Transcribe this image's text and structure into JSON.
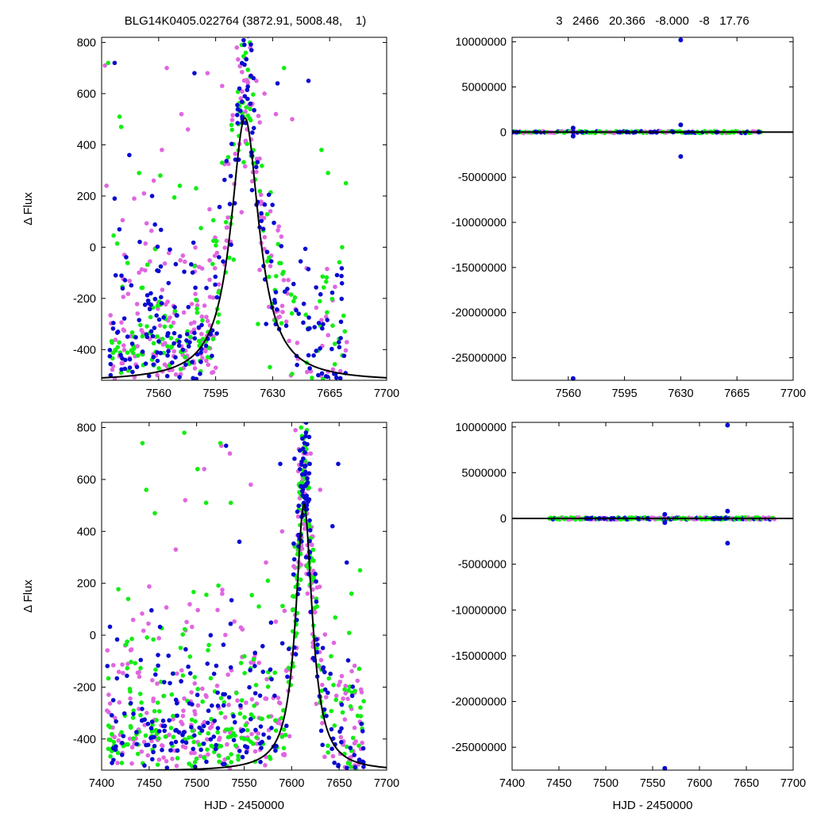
{
  "header": {
    "left": "BLG14K0405.022764 (3872.91, 5008.48,    1)",
    "right": "3   2466   20.366   -8.000   -8   17.76"
  },
  "colors": {
    "magenta": "#e066e0",
    "green": "#11ee11",
    "blue": "#0a0ad0",
    "model": "#000000"
  },
  "chart_data": [
    {
      "panel": "top-left",
      "type": "scatter",
      "ylabel": "Δ Flux",
      "xlabel": "",
      "xlim": [
        7525,
        7700
      ],
      "ylim": [
        -520,
        820
      ],
      "xticks": [
        7560,
        7595,
        7630,
        7665,
        7700
      ],
      "xtick_labels": [
        "7560",
        "7595",
        "7630",
        "7665",
        "7700"
      ],
      "yticks": [
        -400,
        -200,
        0,
        200,
        400,
        600,
        800
      ],
      "ytick_labels": [
        "-400",
        "-200",
        "0",
        "200",
        "400",
        "600",
        "800"
      ],
      "model_curve": {
        "peak_x": 7613,
        "peak_y": 505,
        "width": 10.5,
        "baseline": -525
      },
      "series": [
        {
          "color": "magenta",
          "count": 230,
          "points": [
            [
              7527,
              710
            ],
            [
              7545,
              190
            ],
            [
              7551,
              210
            ],
            [
              7557,
              260
            ],
            [
              7562,
              380
            ],
            [
              7565,
              700
            ],
            [
              7574,
              520
            ],
            [
              7578,
              460
            ],
            [
              7590,
              680
            ],
            [
              7599,
              630
            ],
            [
              7608,
              780
            ],
            [
              7613,
              740
            ],
            [
              7620,
              650
            ],
            [
              7625,
              600
            ],
            [
              7632,
              520
            ],
            [
              7642,
              500
            ],
            [
              7528,
              240
            ],
            [
              7539,
              -30
            ]
          ]
        },
        {
          "color": "green",
          "count": 190,
          "points": [
            [
              7529,
              720
            ],
            [
              7536,
              510
            ],
            [
              7537,
              470
            ],
            [
              7548,
              290
            ],
            [
              7561,
              280
            ],
            [
              7573,
              240
            ],
            [
              7583,
              230
            ],
            [
              7599,
              330
            ],
            [
              7611,
              790
            ],
            [
              7616,
              800
            ],
            [
              7637,
              700
            ],
            [
              7660,
              380
            ],
            [
              7664,
              290
            ],
            [
              7675,
              250
            ],
            [
              7621,
              -300
            ],
            [
              7652,
              -320
            ]
          ]
        },
        {
          "color": "blue",
          "count": 230,
          "points": [
            [
              7533,
              720
            ],
            [
              7533,
              190
            ],
            [
              7542,
              360
            ],
            [
              7556,
              200
            ],
            [
              7582,
              680
            ],
            [
              7617,
              770
            ],
            [
              7633,
              640
            ],
            [
              7646,
              -260
            ],
            [
              7652,
              650
            ],
            [
              7626,
              -300
            ],
            [
              7634,
              -320
            ],
            [
              7645,
              -460
            ],
            [
              7658,
              -500
            ]
          ]
        }
      ]
    },
    {
      "panel": "top-right",
      "type": "scatter",
      "ylabel": "",
      "xlabel": "",
      "xlim": [
        7525,
        7700
      ],
      "ylim": [
        -27500000,
        10500000
      ],
      "xticks": [
        7560,
        7595,
        7630,
        7665,
        7700
      ],
      "xtick_labels": [
        "7560",
        "7595",
        "7630",
        "7665",
        "7700"
      ],
      "yticks": [
        -25000000,
        -20000000,
        -15000000,
        -10000000,
        -5000000,
        0,
        5000000,
        10000000
      ],
      "ytick_labels": [
        "-25000000",
        "-20000000",
        "-15000000",
        "-10000000",
        "-5000000",
        "0",
        "5000000",
        "10000000"
      ],
      "model_line_y": 0,
      "band": {
        "x_start": 7525,
        "x_end": 7680
      },
      "outliers": [
        {
          "color": "blue",
          "x": 7630,
          "y": 10200000
        },
        {
          "color": "blue",
          "x": 7630,
          "y": 800000
        },
        {
          "color": "blue",
          "x": 7630,
          "y": -2700000
        },
        {
          "color": "blue",
          "x": 7563,
          "y": 450000
        },
        {
          "color": "blue",
          "x": 7563,
          "y": -450000
        },
        {
          "color": "blue",
          "x": 7563,
          "y": -27300000
        }
      ]
    },
    {
      "panel": "bottom-left",
      "type": "scatter",
      "ylabel": "Δ Flux",
      "xlabel": "HJD - 2450000",
      "xlim": [
        7400,
        7700
      ],
      "ylim": [
        -520,
        820
      ],
      "xticks": [
        7400,
        7450,
        7500,
        7550,
        7600,
        7650,
        7700
      ],
      "xtick_labels": [
        "7400",
        "7450",
        "7500",
        "7550",
        "7600",
        "7650",
        "7700"
      ],
      "yticks": [
        -400,
        -200,
        0,
        200,
        400,
        600,
        800
      ],
      "ytick_labels": [
        "-400",
        "-200",
        "0",
        "200",
        "400",
        "600",
        "800"
      ],
      "model_curve": {
        "peak_x": 7613,
        "peak_y": 505,
        "width": 10.5,
        "baseline": -525
      },
      "series": [
        {
          "color": "magenta",
          "count": 320,
          "points": [
            [
              7478,
              330
            ],
            [
              7488,
              520
            ],
            [
              7501,
              640
            ],
            [
              7508,
              640
            ],
            [
              7526,
              730
            ],
            [
              7535,
              700
            ],
            [
              7557,
              580
            ],
            [
              7573,
              280
            ],
            [
              7590,
              400
            ],
            [
              7604,
              790
            ],
            [
              7612,
              760
            ],
            [
              7620,
              700
            ],
            [
              7630,
              560
            ]
          ]
        },
        {
          "color": "green",
          "count": 320,
          "points": [
            [
              7443,
              740
            ],
            [
              7447,
              560
            ],
            [
              7456,
              470
            ],
            [
              7487,
              780
            ],
            [
              7501,
              640
            ],
            [
              7510,
              510
            ],
            [
              7525,
              740
            ],
            [
              7536,
              510
            ],
            [
              7575,
              210
            ],
            [
              7610,
              800
            ],
            [
              7616,
              790
            ],
            [
              7663,
              160
            ],
            [
              7672,
              250
            ]
          ]
        },
        {
          "color": "blue",
          "count": 270,
          "points": [
            [
              7531,
              730
            ],
            [
              7545,
              360
            ],
            [
              7588,
              660
            ],
            [
              7603,
              680
            ],
            [
              7614,
              620
            ],
            [
              7649,
              660
            ],
            [
              7643,
              420
            ],
            [
              7658,
              280
            ]
          ]
        }
      ]
    },
    {
      "panel": "bottom-right",
      "type": "scatter",
      "ylabel": "",
      "xlabel": "HJD - 2450000",
      "xlim": [
        7400,
        7700
      ],
      "ylim": [
        -27500000,
        10500000
      ],
      "xticks": [
        7400,
        7450,
        7500,
        7550,
        7600,
        7650,
        7700
      ],
      "xtick_labels": [
        "7400",
        "7450",
        "7500",
        "7550",
        "7600",
        "7650",
        "7700"
      ],
      "yticks": [
        -25000000,
        -20000000,
        -15000000,
        -10000000,
        -5000000,
        0,
        5000000,
        10000000
      ],
      "ytick_labels": [
        "-25000000",
        "-20000000",
        "-15000000",
        "-10000000",
        "-5000000",
        "0",
        "5000000",
        "10000000"
      ],
      "model_line_y": 0,
      "band": {
        "x_start": 7440,
        "x_end": 7680
      },
      "outliers": [
        {
          "color": "blue",
          "x": 7630,
          "y": 10200000
        },
        {
          "color": "blue",
          "x": 7630,
          "y": 800000
        },
        {
          "color": "blue",
          "x": 7630,
          "y": -2700000
        },
        {
          "color": "blue",
          "x": 7563,
          "y": 450000
        },
        {
          "color": "blue",
          "x": 7563,
          "y": -450000
        },
        {
          "color": "blue",
          "x": 7563,
          "y": -27300000
        }
      ]
    }
  ]
}
